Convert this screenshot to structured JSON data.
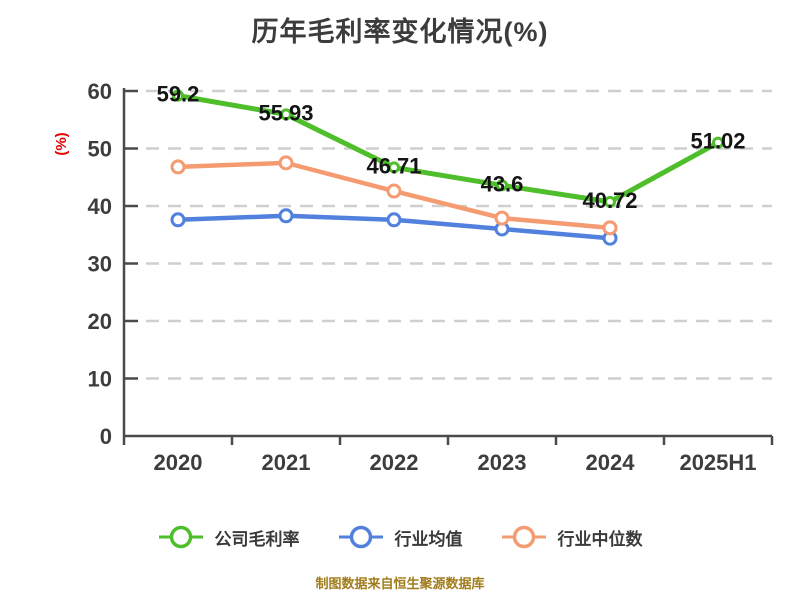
{
  "footer": "制图数据来自恒生聚源数据库",
  "colors": {
    "company": "#4fbe2b",
    "industry_avg": "#5181dd",
    "industry_median": "#f49b72",
    "title_text": "#3c3c3c",
    "axis": "#4a4a4a",
    "grid": "#cfcfcf",
    "tick_label": "#3d3d3d",
    "data_label": "#141414",
    "ylabel_text": "#e60000",
    "footer_text": "#a17c1c",
    "background": "#ffffff"
  },
  "chart_data": {
    "type": "line",
    "title": "历年毛利率变化情况(%)",
    "xlabel": "",
    "ylabel": "(%)",
    "ylim": [
      0,
      60
    ],
    "yticks": [
      0,
      10,
      20,
      30,
      40,
      50,
      60
    ],
    "grid": "horizontal-dashed",
    "legend_position": "bottom",
    "categories": [
      "2020",
      "2021",
      "2022",
      "2023",
      "2024",
      "2025H1"
    ],
    "series": [
      {
        "name": "公司毛利率",
        "color_key": "company",
        "values": [
          59.2,
          55.93,
          46.71,
          43.6,
          40.72,
          51.02
        ],
        "labels": [
          "59.2",
          "55.93",
          "46.71",
          "43.6",
          "40.72",
          "51.02"
        ]
      },
      {
        "name": "行业均值",
        "color_key": "industry_avg",
        "values": [
          37.6,
          38.3,
          37.6,
          36.0,
          34.4,
          null
        ]
      },
      {
        "name": "行业中位数",
        "color_key": "industry_median",
        "values": [
          46.8,
          47.5,
          42.6,
          37.9,
          36.2,
          null
        ]
      }
    ]
  }
}
